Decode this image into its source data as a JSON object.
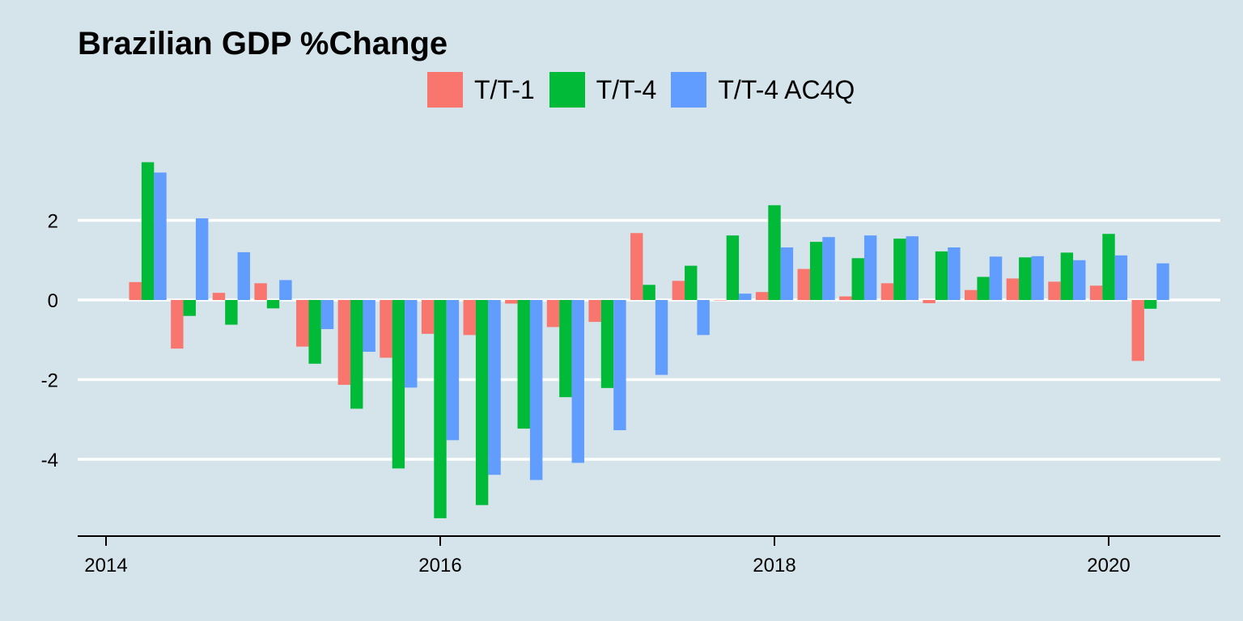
{
  "chart_data": {
    "type": "bar",
    "title": "Brazilian GDP %Change",
    "xlabel": "",
    "ylabel": "",
    "x_ticks": [
      "2014",
      "2016",
      "2018",
      "2020"
    ],
    "x_tick_values": [
      2014.0,
      2016.0,
      2018.0,
      2020.0
    ],
    "y_ticks": [
      "2",
      "0",
      "-2",
      "-4"
    ],
    "y_tick_values": [
      2,
      0,
      -2,
      -4
    ],
    "xlim": [
      2013.8,
      2020.7
    ],
    "ylim": [
      -5.8,
      4.0
    ],
    "grid": "horizontal",
    "legend_position": "top",
    "periods": [
      "2014-Q1",
      "2014-Q2",
      "2014-Q3",
      "2014-Q4",
      "2015-Q1",
      "2015-Q2",
      "2015-Q3",
      "2015-Q4",
      "2016-Q1",
      "2016-Q2",
      "2016-Q3",
      "2016-Q4",
      "2017-Q1",
      "2017-Q2",
      "2017-Q3",
      "2017-Q4",
      "2018-Q1",
      "2018-Q2",
      "2018-Q3",
      "2018-Q4",
      "2019-Q1",
      "2019-Q2",
      "2019-Q3",
      "2019-Q4",
      "2020-Q1"
    ],
    "x": [
      2014.25,
      2014.5,
      2014.75,
      2015.0,
      2015.25,
      2015.5,
      2015.75,
      2016.0,
      2016.25,
      2016.5,
      2016.75,
      2017.0,
      2017.25,
      2017.5,
      2017.75,
      2018.0,
      2018.25,
      2018.5,
      2018.75,
      2019.0,
      2019.25,
      2019.5,
      2019.75,
      2020.0,
      2020.25
    ],
    "series": [
      {
        "name": "T/T-1",
        "color": "#F8766D",
        "values": [
          0.45,
          -1.22,
          0.18,
          0.42,
          -1.17,
          -2.13,
          -1.45,
          -0.85,
          -0.88,
          -0.09,
          -0.68,
          -0.55,
          1.68,
          0.48,
          0.0,
          0.2,
          0.78,
          0.09,
          0.42,
          -0.08,
          0.25,
          0.54,
          0.46,
          0.36,
          -1.53
        ]
      },
      {
        "name": "T/T-4",
        "color": "#00BA38",
        "values": [
          3.46,
          -0.4,
          -0.62,
          -0.21,
          -1.6,
          -2.73,
          -4.23,
          -5.48,
          -5.15,
          -3.23,
          -2.44,
          -2.21,
          0.38,
          0.86,
          1.62,
          2.38,
          1.46,
          1.05,
          1.54,
          1.22,
          0.58,
          1.07,
          1.19,
          1.66,
          -0.22
        ]
      },
      {
        "name": "T/T-4 AC4Q",
        "color": "#619CFF",
        "values": [
          3.2,
          2.05,
          1.2,
          0.5,
          -0.73,
          -1.3,
          -2.2,
          -3.52,
          -4.39,
          -4.52,
          -4.09,
          -3.27,
          -1.88,
          -0.88,
          0.16,
          1.32,
          1.58,
          1.62,
          1.6,
          1.32,
          1.09,
          1.1,
          1.0,
          1.12,
          0.92
        ]
      }
    ]
  }
}
